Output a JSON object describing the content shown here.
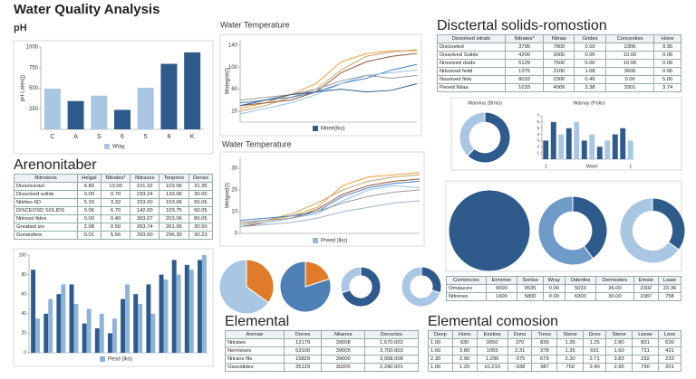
{
  "title": "Water Quality Analysis",
  "chart_data": [
    {
      "type": "bar",
      "title": "pH",
      "y_label": "pH Latex(j)",
      "categories": [
        "C",
        "A",
        "S",
        "6",
        "5",
        "8",
        "K"
      ],
      "series": [
        {
          "name": "Wtay",
          "color": "#a9c6e3",
          "colors": [
            "#a9c6e3",
            "#2e5a8c",
            "#a9c6e3",
            "#2e5a8c",
            "#a9c6e3",
            "#2e5a8c",
            "#2e5a8c"
          ],
          "values": [
            495,
            344,
            409,
            237,
            505,
            796,
            935
          ]
        }
      ],
      "ylim": [
        0,
        1000
      ],
      "yticks": [
        250,
        500,
        750,
        1000
      ]
    },
    {
      "type": "line",
      "title": "Water Temperature",
      "y_label": "Wategrel(I)",
      "series": [
        {
          "color": "#e8a13c",
          "values": [
            25,
            35,
            50,
            70,
            110,
            125,
            130,
            130
          ]
        },
        {
          "color": "#c9a46a",
          "values": [
            20,
            30,
            45,
            60,
            95,
            120,
            128,
            132
          ]
        },
        {
          "color": "#8c5a3c",
          "values": [
            30,
            35,
            40,
            55,
            90,
            110,
            120,
            125
          ]
        },
        {
          "color": "#4a7fc1",
          "values": [
            35,
            40,
            45,
            55,
            70,
            80,
            95,
            105
          ]
        },
        {
          "color": "#8fc1e3",
          "values": [
            15,
            25,
            35,
            50,
            70,
            85,
            90,
            95
          ]
        },
        {
          "color": "#9a9a9a",
          "values": [
            40,
            45,
            50,
            60,
            75,
            85,
            80,
            85
          ]
        },
        {
          "name": "Mnee(lko)",
          "color": "#2e5a8c",
          "values": [
            30,
            40,
            50,
            55,
            60,
            55,
            58,
            70
          ]
        }
      ],
      "ylim": [
        0,
        150
      ],
      "yticks": [
        20,
        60,
        100,
        140
      ]
    },
    {
      "type": "line",
      "title": "Water Temperature",
      "y_label": "Wetgred(I)",
      "series": [
        {
          "color": "#e8a13c",
          "values": [
            5,
            6,
            8,
            12,
            22,
            26,
            27,
            28
          ]
        },
        {
          "color": "#c9a46a",
          "values": [
            4,
            6,
            9,
            14,
            20,
            24,
            26,
            27
          ]
        },
        {
          "color": "#8c5a3c",
          "values": [
            3,
            5,
            7,
            11,
            18,
            22,
            24,
            25
          ]
        },
        {
          "color": "#4a7fc1",
          "values": [
            6,
            7,
            8,
            10,
            17,
            21,
            23,
            24
          ]
        },
        {
          "color": "#8fc1e3",
          "values": [
            4,
            5,
            7,
            9,
            15,
            20,
            22,
            21
          ]
        },
        {
          "color": "#9a9a9a",
          "values": [
            5,
            6,
            7,
            10,
            14,
            17,
            19,
            20
          ]
        },
        {
          "name": "Preed (lko)",
          "color": "#9fb3c8",
          "values": [
            3,
            4,
            5,
            7,
            10,
            12,
            14,
            15
          ]
        }
      ],
      "ylim": [
        0,
        35
      ],
      "yticks": [
        0,
        10,
        20,
        30
      ]
    },
    {
      "type": "donut",
      "title": "Wamina (Brms)",
      "values": [
        62,
        38
      ],
      "colors": [
        "#2e5a8c",
        "#a9c6e3"
      ]
    },
    {
      "type": "bar",
      "title": "Wamay (Polis)",
      "categories": [
        "1",
        null,
        null,
        null,
        null,
        null,
        "Ware",
        null,
        null,
        null,
        null,
        "1"
      ],
      "series": [
        {
          "colors": [
            "#2e5a8c",
            "#2e5a8c",
            "#a9c6e3",
            "#2e5a8c",
            "#a9c6e3",
            "#2e5a8c",
            "#a9c6e3",
            "#2e5a8c",
            "#a9c6e3",
            "#2e5a8c",
            "#2e5a8c",
            "#a9c6e3"
          ],
          "values": [
            3,
            6,
            4,
            5,
            6,
            3,
            4,
            2,
            3,
            4,
            5,
            3
          ]
        }
      ],
      "ylim": [
        0,
        7
      ],
      "yticks": [
        1,
        2,
        3,
        4,
        5,
        6,
        7
      ]
    },
    {
      "type": "bar",
      "series": [
        {
          "color": "#2e5a8c",
          "values": [
            85,
            40,
            60,
            70,
            30,
            25,
            20,
            55,
            60,
            70,
            80,
            95,
            90,
            95
          ]
        },
        {
          "name": "Pesd (lko)",
          "color": "#8fb4d8",
          "values": [
            35,
            55,
            70,
            50,
            45,
            40,
            35,
            70,
            50,
            40,
            75,
            80,
            85,
            100
          ]
        }
      ],
      "ylim": [
        0,
        100
      ],
      "yticks": [
        0,
        20,
        40,
        60,
        80,
        100
      ]
    },
    {
      "type": "pie",
      "values": [
        35,
        65
      ],
      "colors": [
        "#e07b2a",
        "#a9c6e3"
      ]
    },
    {
      "type": "pie",
      "values": [
        20,
        80
      ],
      "colors": [
        "#e07b2a",
        "#4f80b5"
      ]
    },
    {
      "type": "donut",
      "values": [
        70,
        30
      ],
      "colors": [
        "#2e5a8c",
        "#a9c6e3"
      ]
    },
    {
      "type": "donut",
      "values": [
        30,
        70
      ],
      "colors": [
        "#2e5a8c",
        "#a9c6e3"
      ]
    },
    {
      "type": "pie",
      "values": [
        100
      ],
      "colors": [
        "#2e5a8c"
      ]
    },
    {
      "type": "donut",
      "values": [
        40,
        60
      ],
      "colors": [
        "#2e5a8c",
        "#6f9bc9"
      ]
    },
    {
      "type": "donut",
      "values": [
        35,
        65
      ],
      "colors": [
        "#2e5a8c",
        "#a9c6e3"
      ]
    }
  ],
  "tables": [
    {
      "title": "Disctertal solids-romostion",
      "columns": [
        "Dissolved sitrats",
        "Nitrates*",
        "Nitrais",
        "Grides",
        "Concenties",
        "Hone"
      ],
      "rows": [
        [
          "Disciveted",
          "3795",
          "7800",
          "0.00",
          "2306",
          "9.95"
        ],
        [
          "Dissolved Solids",
          "4200",
          "3000",
          "0.05",
          "10.06",
          "0.06"
        ],
        [
          "Niresived dsids",
          "5129",
          "7500",
          "0.00",
          "10.06",
          "0.06"
        ],
        [
          "Nitssived fedd",
          "1375",
          "3100",
          "1.08",
          "3606",
          "0.95"
        ],
        [
          "Nsssived fiids",
          "8033",
          "2300",
          "0.46",
          "0.06",
          "5.00"
        ],
        [
          "Pened Nilaa",
          "1033",
          "4009",
          "3.38",
          "3301",
          "3.74"
        ]
      ]
    },
    {
      "title": "Arenonitaber",
      "columns": [
        "Nitrotenis",
        "Helgal",
        "Nitrates*",
        "Nitrases",
        "Tenpeno",
        "Denes"
      ],
      "rows": [
        [
          "Dissolvestel",
          "4.80",
          "13.00",
          "101.32",
          "103.06",
          "31.35"
        ],
        [
          "Dissolved solids",
          "0.00",
          "0.70",
          "233.24",
          "133.06",
          "30.00"
        ],
        [
          "Nitrites 6D",
          "5.33",
          "3.32",
          "153.00",
          "153.06",
          "65.06"
        ],
        [
          "DISCEOSD SOLIDS",
          "0.06",
          "6.70",
          "142.00",
          "103.75",
          "60.05"
        ],
        [
          "Nitrosol fides",
          "0.00",
          "0.40",
          "303.07",
          "203.06",
          "80.05"
        ],
        [
          "Greatsid izo",
          "2.08",
          "0.50",
          "263.74",
          "261.06",
          "30.50"
        ],
        [
          "Goneisfere",
          "0.01",
          "5.56",
          "293.60",
          "296.30",
          "30.23"
        ]
      ]
    },
    {
      "columns": [
        "Comencies",
        "Ermimer",
        "Sreliss",
        "Wray",
        "Odenfes",
        "Demosites",
        "Emsie",
        "Loaie"
      ],
      "rows": [
        [
          "Omaiuces",
          "9000",
          "9535",
          "0.00",
          "5033",
          "36.00",
          "2302",
          "23.36"
        ],
        [
          "Nitrenes",
          "1600",
          "5800",
          "0.00",
          "6300",
          "30.00",
          "2387",
          "758"
        ]
      ]
    },
    {
      "title": "Elemental",
      "columns": [
        "Arenae",
        "Dones",
        "Nitanes",
        "Densctes"
      ],
      "rows": [
        [
          "Nitrates",
          "12179",
          "30008",
          "1,570.002"
        ],
        [
          "Nennoses",
          "53100",
          "39005",
          "3,700.003"
        ],
        [
          "Nitrans fils",
          "15829",
          "39000",
          "3,058.008"
        ],
        [
          "Ossoidides",
          "35129",
          "30200",
          "2,290.001"
        ]
      ]
    },
    {
      "title": "Elemental comosion",
      "columns": [
        "Deep",
        "Hone",
        "Eestios",
        "Dono",
        "Treso",
        "Stene",
        "Greo",
        "Stene",
        "Lesse",
        "Loso"
      ],
      "rows": [
        [
          "1.00",
          "930",
          "0050",
          "370",
          "839",
          "1.35",
          "1.25",
          "2.80",
          "831",
          "630"
        ],
        [
          "1.60",
          "3.80",
          "1055",
          "3.31",
          "378",
          "1.35",
          "691",
          "1.60",
          "731",
          "431"
        ],
        [
          "2.30",
          "2.90",
          "1.290",
          "-375",
          "679",
          "2.30",
          "2.71",
          "3.83",
          "292",
          "233"
        ],
        [
          "1.00",
          "1.20",
          "10.210",
          "-338",
          "387",
          "750",
          "2.40",
          "2.90",
          "790",
          "201"
        ]
      ]
    }
  ]
}
